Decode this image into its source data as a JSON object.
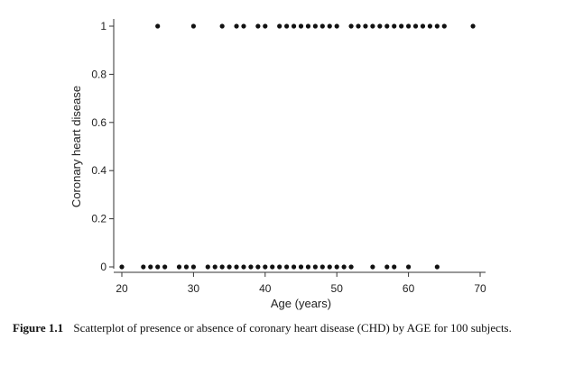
{
  "chart_data": {
    "type": "scatter",
    "xlabel": "Age (years)",
    "ylabel": "Coronary heart disease",
    "xlim": [
      20,
      70
    ],
    "ylim": [
      0,
      1
    ],
    "x_ticks": [
      20,
      30,
      40,
      50,
      60,
      70
    ],
    "x_tick_labels": [
      "20",
      "30",
      "40",
      "50",
      "60",
      "70"
    ],
    "y_ticks": [
      0,
      0.2,
      0.4,
      0.6,
      0.8,
      1
    ],
    "y_tick_labels": [
      "0",
      "0.2",
      "0.4",
      "0.6",
      "0.8",
      "1"
    ],
    "grid": false,
    "series": [
      {
        "x": [
          20,
          23,
          24,
          25,
          26,
          28,
          29,
          30,
          32,
          33,
          34,
          35,
          36,
          37,
          38,
          39,
          40,
          41,
          42,
          43,
          44,
          45,
          46,
          47,
          48,
          49,
          50,
          51,
          52,
          55,
          57,
          58,
          60,
          64,
          25,
          30,
          34,
          36,
          37,
          39,
          40,
          42,
          43,
          44,
          45,
          46,
          47,
          48,
          49,
          50,
          52,
          53,
          54,
          55,
          56,
          57,
          58,
          59,
          60,
          61,
          62,
          63,
          64,
          65,
          69
        ],
        "y": [
          0,
          0,
          0,
          0,
          0,
          0,
          0,
          0,
          0,
          0,
          0,
          0,
          0,
          0,
          0,
          0,
          0,
          0,
          0,
          0,
          0,
          0,
          0,
          0,
          0,
          0,
          0,
          0,
          0,
          0,
          0,
          0,
          0,
          0,
          1,
          1,
          1,
          1,
          1,
          1,
          1,
          1,
          1,
          1,
          1,
          1,
          1,
          1,
          1,
          1,
          1,
          1,
          1,
          1,
          1,
          1,
          1,
          1,
          1,
          1,
          1,
          1,
          1,
          1,
          1
        ],
        "color": "#111111"
      }
    ]
  },
  "caption": {
    "label": "Figure 1.1",
    "text": "Scatterplot of presence or absence of coronary heart disease (CHD) by AGE for 100 subjects."
  }
}
